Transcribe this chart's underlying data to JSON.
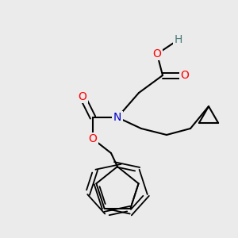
{
  "background_color": "#ebebeb",
  "atom_colors": {
    "C": "#000000",
    "O": "#ff0000",
    "N": "#0000cc",
    "H": "#4a7a7a"
  },
  "figsize": [
    3.0,
    3.0
  ],
  "dpi": 100
}
